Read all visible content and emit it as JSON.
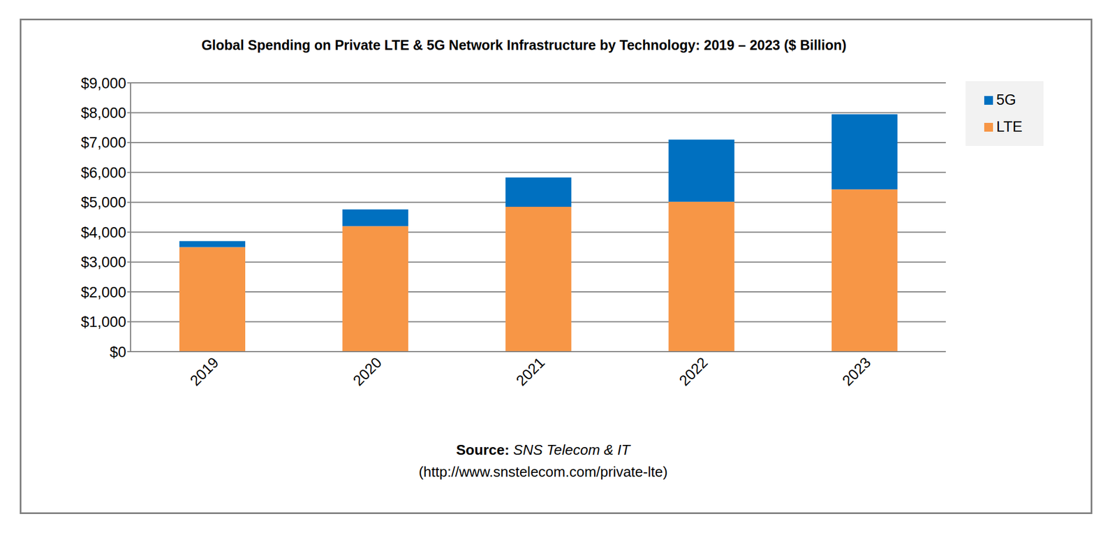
{
  "chart_data": {
    "type": "bar",
    "title": "Global Spending on Private LTE & 5G Network Infrastructure by Technology: 2019 – 2023 ($ Billion)",
    "categories": [
      "2019",
      "2020",
      "2021",
      "2022",
      "2023"
    ],
    "series": [
      {
        "name": "LTE",
        "color": "#F79646",
        "values": [
          3500,
          4200,
          4850,
          5020,
          5430
        ]
      },
      {
        "name": "5G",
        "color": "#0070C0",
        "values": [
          200,
          560,
          980,
          2080,
          2520
        ]
      }
    ],
    "stacked": true,
    "grid": true,
    "legend": "right",
    "ylim": [
      0,
      9000
    ],
    "yticks": [
      {
        "value": 0,
        "label": "$0"
      },
      {
        "value": 1000,
        "label": "$1,000"
      },
      {
        "value": 2000,
        "label": "$2,000"
      },
      {
        "value": 3000,
        "label": "$3,000"
      },
      {
        "value": 4000,
        "label": "$4,000"
      },
      {
        "value": 5000,
        "label": "$5,000"
      },
      {
        "value": 6000,
        "label": "$6,000"
      },
      {
        "value": 7000,
        "label": "$7,000"
      },
      {
        "value": 8000,
        "label": "$8,000"
      },
      {
        "value": 9000,
        "label": "$9,000"
      }
    ],
    "source": {
      "label": "Source:",
      "name": "SNS Telecom & IT",
      "url": "(http://www.snstelecom.com/private-lte)"
    }
  }
}
